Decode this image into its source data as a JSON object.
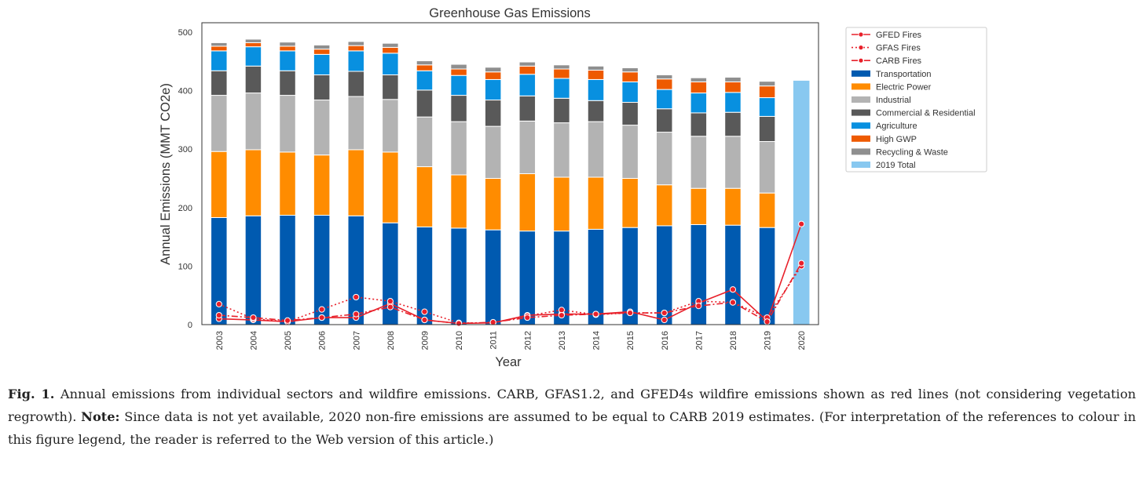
{
  "chart_data": {
    "type": "bar",
    "title": "Greenhouse Gas Emissions",
    "xlabel": "Year",
    "ylabel": "Annual Emissions (MMT CO2e)",
    "ylim": [
      0,
      500
    ],
    "yticks": [
      0,
      100,
      200,
      300,
      400,
      500
    ],
    "grid": false,
    "legend_position": "outside-right",
    "categories": [
      "2003",
      "2004",
      "2005",
      "2006",
      "2007",
      "2008",
      "2009",
      "2010",
      "2011",
      "2012",
      "2013",
      "2014",
      "2015",
      "2016",
      "2017",
      "2018",
      "2019",
      "2020"
    ],
    "stacked_series": [
      {
        "name": "Transportation",
        "color": "#005ab0",
        "values": [
          183,
          186,
          187,
          187,
          186,
          174,
          167,
          165,
          162,
          160,
          160,
          163,
          166,
          169,
          171,
          170,
          166,
          null
        ]
      },
      {
        "name": "Electric Power",
        "color": "#ff8c00",
        "values": [
          113,
          113,
          108,
          103,
          113,
          121,
          103,
          91,
          88,
          98,
          92,
          89,
          84,
          70,
          62,
          63,
          59,
          null
        ]
      },
      {
        "name": "Industrial",
        "color": "#b3b3b3",
        "values": [
          96,
          97,
          97,
          94,
          91,
          90,
          85,
          91,
          89,
          90,
          93,
          95,
          91,
          90,
          89,
          89,
          88,
          null
        ]
      },
      {
        "name": "Commercial & Residential",
        "color": "#595959",
        "values": [
          42,
          46,
          42,
          43,
          43,
          42,
          46,
          45,
          45,
          43,
          42,
          36,
          39,
          40,
          40,
          41,
          43,
          null
        ]
      },
      {
        "name": "Agriculture",
        "color": "#0890e0",
        "values": [
          34,
          33,
          34,
          35,
          35,
          37,
          33,
          34,
          35,
          37,
          34,
          36,
          35,
          33,
          34,
          34,
          32,
          null
        ]
      },
      {
        "name": "High GWP",
        "color": "#ee5a00",
        "values": [
          8,
          7,
          8,
          9,
          9,
          10,
          10,
          11,
          13,
          14,
          16,
          16,
          17,
          18,
          19,
          18,
          20,
          null
        ]
      },
      {
        "name": "Recycling & Waste",
        "color": "#8f8f8f",
        "values": [
          6,
          6,
          7,
          7,
          7,
          7,
          7,
          8,
          8,
          7,
          7,
          7,
          7,
          7,
          7,
          8,
          8,
          null
        ]
      }
    ],
    "total_bar": {
      "name": "2019 Total",
      "color": "#88c8f0",
      "values": [
        null,
        null,
        null,
        null,
        null,
        null,
        null,
        null,
        null,
        null,
        null,
        null,
        null,
        null,
        null,
        null,
        null,
        417
      ]
    },
    "line_series": [
      {
        "name": "GFED Fires",
        "color": "#e8202a",
        "style": "solid",
        "values": [
          10,
          8,
          5,
          12,
          12,
          36,
          8,
          2,
          3,
          16,
          18,
          18,
          22,
          8,
          37,
          60,
          6,
          172
        ]
      },
      {
        "name": "GFAS Fires",
        "color": "#e8202a",
        "style": "dotted",
        "values": [
          35,
          10,
          5,
          26,
          47,
          40,
          22,
          3,
          3,
          15,
          25,
          17,
          20,
          20,
          40,
          38,
          12,
          100
        ]
      },
      {
        "name": "CARB Fires",
        "color": "#e8202a",
        "style": "dashdot",
        "values": [
          16,
          12,
          7,
          12,
          18,
          30,
          8,
          2,
          4,
          12,
          16,
          18,
          20,
          20,
          32,
          38,
          5,
          105
        ]
      }
    ]
  },
  "caption": {
    "fig_label": "Fig. 1.",
    "text1": " Annual emissions from individual sectors and wildfire emissions. CARB, GFAS1.2, and GFED4s wildfire emissions shown as red lines (not considering vegetation regrowth). ",
    "note_label": "Note:",
    "text2": " Since data is not yet available, 2020 non-fire emissions are assumed to be equal to CARB 2019 estimates. (For interpretation of the references to colour in this figure legend, the reader is referred to the Web version of this article.)"
  }
}
